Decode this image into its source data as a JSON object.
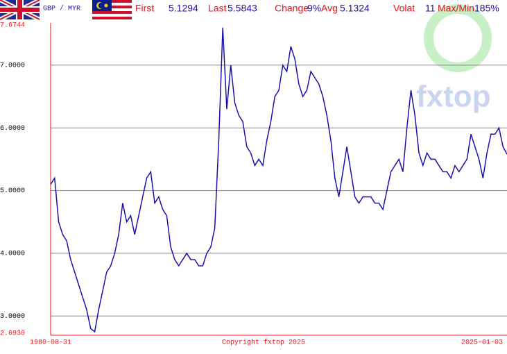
{
  "chart_data": {
    "type": "line",
    "pair": "GBP / MYR",
    "stats": [
      {
        "label": "First",
        "value": "5.1294"
      },
      {
        "label": "Last",
        "value": "5.5843"
      },
      {
        "label": "Change",
        "value": "9%"
      },
      {
        "label": "Avg",
        "value": "5.1324"
      },
      {
        "label": "Volat",
        "value": "11"
      },
      {
        "label": "Max/Min",
        "value": "185%"
      }
    ],
    "annotation": "Copyright fxtop 2025",
    "watermark": "fxtop",
    "color": "#1a0fb0",
    "categories": [
      "1980-08-31",
      null,
      null,
      null,
      null,
      null,
      null,
      null,
      null,
      null,
      null,
      null,
      null,
      null,
      null,
      null,
      null,
      null,
      null,
      null,
      null,
      null,
      null,
      null,
      null,
      null,
      null,
      null,
      null,
      null,
      null,
      null,
      null,
      null,
      null,
      null,
      null,
      null,
      null,
      null,
      null,
      null,
      null,
      null,
      null,
      null,
      null,
      null,
      null,
      null,
      null,
      null,
      null,
      null,
      null,
      null,
      null,
      null,
      null,
      null,
      null,
      null,
      null,
      null,
      null,
      null,
      null,
      null,
      null,
      null,
      null,
      null,
      null,
      null,
      null,
      null,
      null,
      null,
      null,
      null,
      null,
      null,
      null,
      null,
      null,
      null,
      null,
      null,
      null,
      null,
      null,
      null,
      null,
      null,
      null,
      null,
      null,
      null,
      null,
      null,
      null,
      null,
      null,
      null,
      null,
      null,
      null,
      null,
      null,
      null,
      null,
      null,
      null,
      null,
      "2025-01-03"
    ],
    "values": [
      5.1,
      5.2,
      4.5,
      4.3,
      4.2,
      3.9,
      3.7,
      3.5,
      3.3,
      3.1,
      2.8,
      2.75,
      3.1,
      3.4,
      3.7,
      3.8,
      4.0,
      4.3,
      4.8,
      4.5,
      4.6,
      4.3,
      4.6,
      4.9,
      5.2,
      5.3,
      4.8,
      4.9,
      4.7,
      4.6,
      4.1,
      3.9,
      3.8,
      3.9,
      4.0,
      3.9,
      3.9,
      3.8,
      3.8,
      4.0,
      4.1,
      4.4,
      5.8,
      7.6,
      6.3,
      7.0,
      6.4,
      6.2,
      6.1,
      5.7,
      5.6,
      5.4,
      5.5,
      5.4,
      5.8,
      6.1,
      6.5,
      6.6,
      7.0,
      6.9,
      7.3,
      7.1,
      6.7,
      6.5,
      6.6,
      6.9,
      6.8,
      6.7,
      6.5,
      6.2,
      5.8,
      5.2,
      4.9,
      5.3,
      5.7,
      5.3,
      4.9,
      4.8,
      4.9,
      4.9,
      4.9,
      4.8,
      4.8,
      4.7,
      5.0,
      5.3,
      5.4,
      5.5,
      5.3,
      6.0,
      6.6,
      6.2,
      5.6,
      5.4,
      5.6,
      5.5,
      5.5,
      5.4,
      5.3,
      5.3,
      5.2,
      5.4,
      5.3,
      5.4,
      5.5,
      5.9,
      5.7,
      5.5,
      5.2,
      5.6,
      5.9,
      5.9,
      6.0,
      5.7,
      5.58
    ],
    "ylim": [
      2.693,
      7.6744
    ],
    "yticks": [
      {
        "value": 2.693,
        "label": "2.6930"
      },
      {
        "value": 3,
        "label": "3.0000"
      },
      {
        "value": 4,
        "label": "4.0000"
      },
      {
        "value": 5,
        "label": "5.0000"
      },
      {
        "value": 6,
        "label": "6.0000"
      },
      {
        "value": 7,
        "label": "7.0000"
      },
      {
        "value": 7.6744,
        "label": "7.6744"
      }
    ],
    "grid": true
  }
}
